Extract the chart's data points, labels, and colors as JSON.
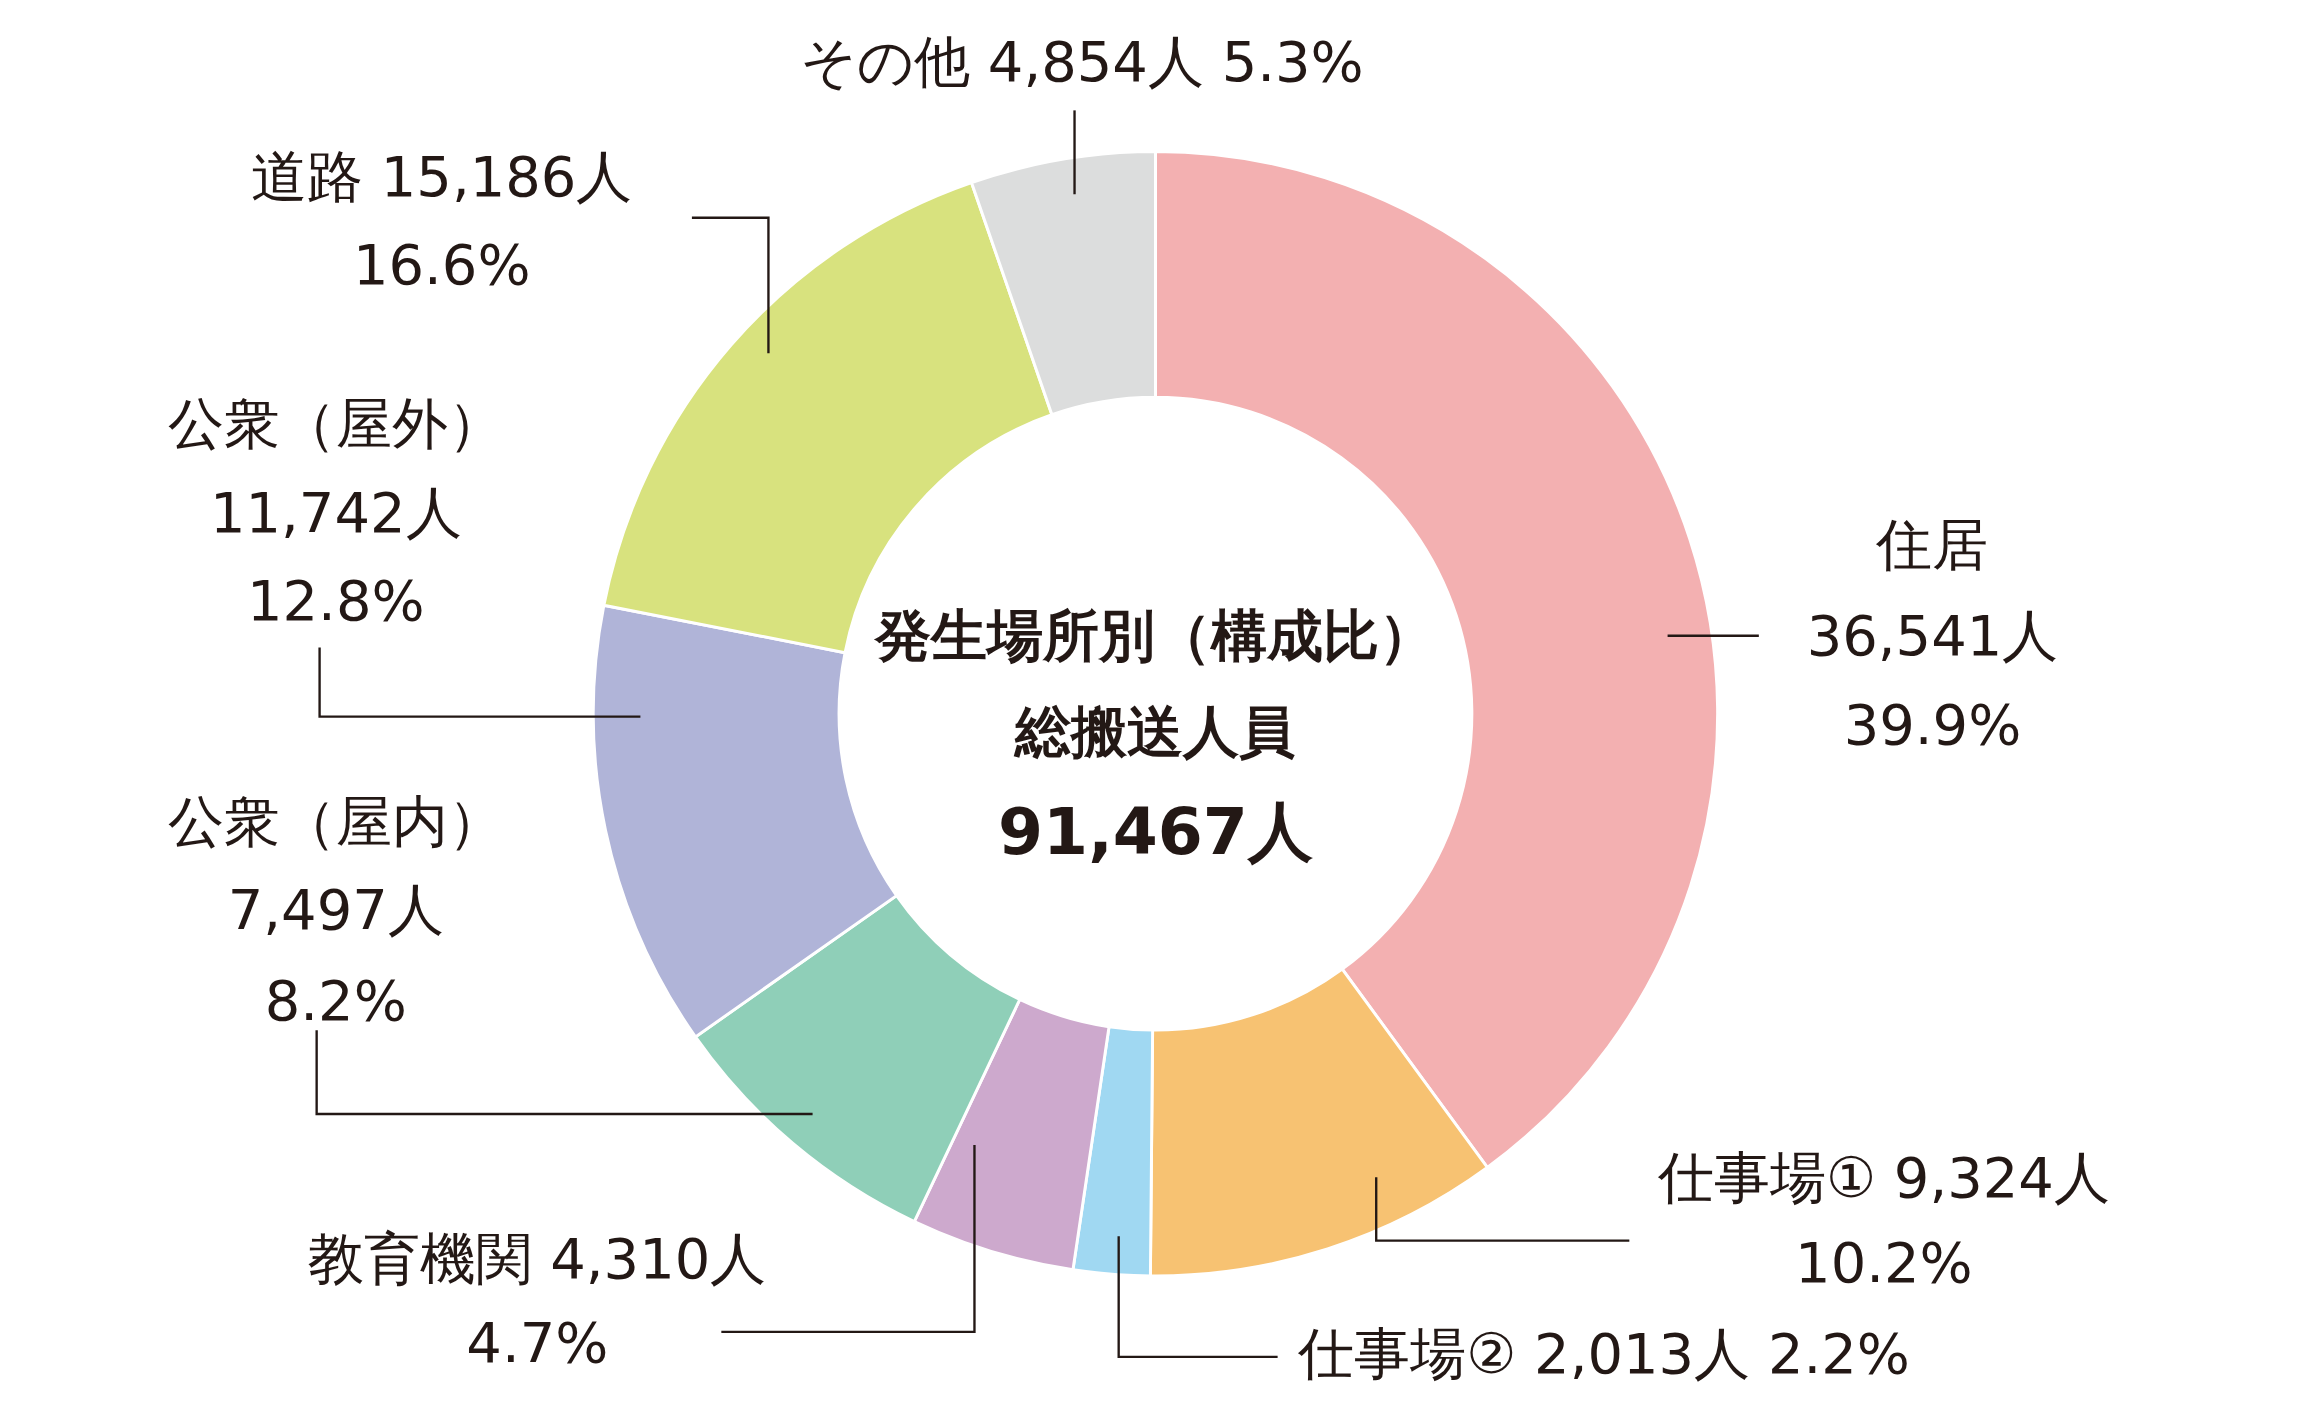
{
  "chart_data": {
    "type": "donut",
    "title": "発生場所別（構成比）",
    "subtitle": "総搬送人員",
    "annotations": [
      "91,467人"
    ],
    "categories": [
      "住居",
      "仕事場①",
      "仕事場②",
      "教育機関",
      "公衆（屋内）",
      "公衆（屋外）",
      "道路",
      "その他"
    ],
    "values": [
      36541,
      9324,
      2013,
      4310,
      7497,
      11742,
      15186,
      4854
    ],
    "value_labels": [
      "36,541人 39.9%",
      "9,324人 10.2%",
      "2,013人 2.2%",
      "4,310人 4.7%",
      "7,497人 8.2%",
      "11,742人 12.8%",
      "15,186人 16.6%",
      "4,854人 5.3%"
    ],
    "colors": [
      "#f3b0b1",
      "#f7c272",
      "#a0d8f2",
      "#cda9cd",
      "#8fcfb8",
      "#b0b4d8",
      "#d8e27e",
      "#dcdddd"
    ]
  }
}
